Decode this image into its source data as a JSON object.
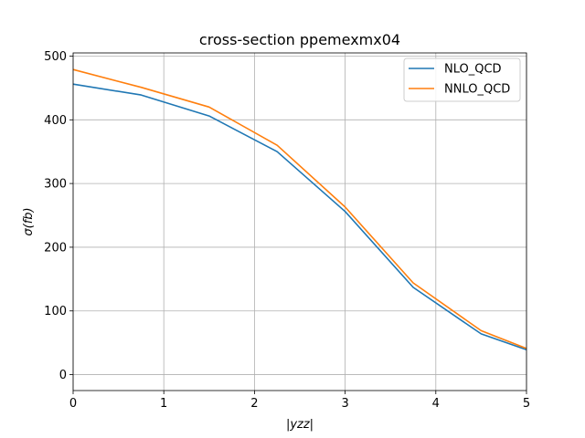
{
  "chart_data": {
    "type": "line",
    "title": "cross-section ppemexmx04",
    "xlabel": "|yzz|",
    "ylabel": "σ(fb)",
    "xlim": [
      0,
      5
    ],
    "ylim": [
      -25,
      505
    ],
    "xticks": [
      0,
      1,
      2,
      3,
      4,
      5
    ],
    "yticks": [
      0,
      100,
      200,
      300,
      400,
      500
    ],
    "grid": true,
    "legend_position": "top-right",
    "x": [
      0,
      0.75,
      1.5,
      2.25,
      3.0,
      3.75,
      4.5,
      5.0
    ],
    "series": [
      {
        "name": "NLO_QCD",
        "color": "#1f77b4",
        "values": [
          456,
          439,
          406,
          350,
          256,
          137,
          64,
          39
        ]
      },
      {
        "name": "NNLO_QCD",
        "color": "#ff7f0e",
        "values": [
          479,
          451,
          420,
          360,
          263,
          144,
          69,
          41
        ]
      }
    ]
  }
}
